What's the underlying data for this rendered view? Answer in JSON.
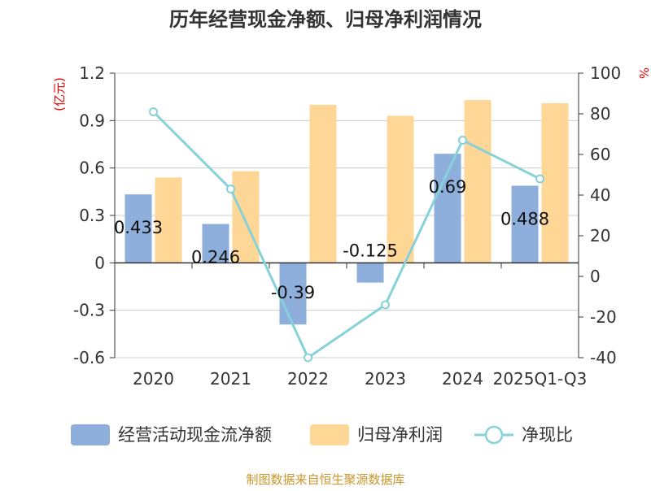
{
  "chart_data": {
    "type": "bar+line",
    "title": "历年经营现金净额、归母净利润情况",
    "categories": [
      "2020",
      "2021",
      "2022",
      "2023",
      "2024",
      "2025Q1-Q3"
    ],
    "left_axis": {
      "unit": "(亿元)",
      "ylim": [
        -0.6,
        1.2
      ],
      "ticks": [
        "1.2",
        "0.9",
        "0.6",
        "0.3",
        "0",
        "-0.3",
        "-0.6"
      ]
    },
    "right_axis": {
      "unit": "%",
      "ylim": [
        -40,
        100
      ],
      "ticks": [
        "100",
        "80",
        "60",
        "40",
        "20",
        "0",
        "-20",
        "-40"
      ]
    },
    "series": [
      {
        "name": "经营活动现金流净额",
        "type": "bar",
        "axis": "left",
        "color": "#8eaedc",
        "values": [
          0.433,
          0.246,
          -0.39,
          -0.125,
          0.69,
          0.488
        ],
        "labels": [
          "0.433",
          "0.246",
          "-0.39",
          "-0.125",
          "0.69",
          "0.488"
        ]
      },
      {
        "name": "归母净利润",
        "type": "bar",
        "axis": "left",
        "color": "#fed797",
        "values": [
          0.54,
          0.58,
          1.0,
          0.93,
          1.03,
          1.01
        ]
      },
      {
        "name": "净现比",
        "type": "line",
        "axis": "right",
        "color": "#86d2d8",
        "values": [
          81,
          43,
          -40,
          -14,
          67,
          48
        ]
      }
    ],
    "legend_position": "bottom",
    "source": "制图数据来自恒生聚源数据库"
  }
}
